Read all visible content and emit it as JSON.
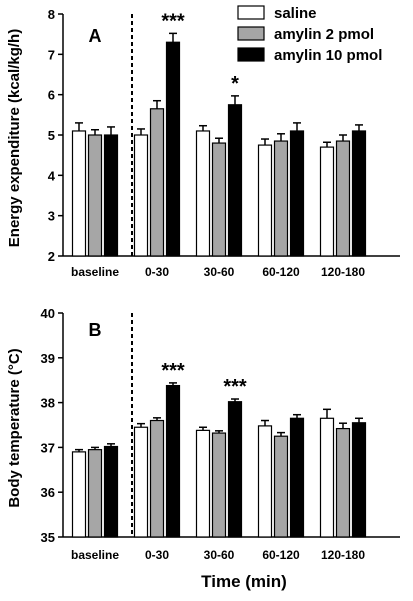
{
  "legend": {
    "position": "top-right",
    "items": [
      {
        "label": "saline",
        "fill": "#ffffff"
      },
      {
        "label": "amylin 2 pmol",
        "fill": "#a6a6a6"
      },
      {
        "label": "amylin 10 pmol",
        "fill": "#000000"
      }
    ]
  },
  "xlabel": "Time (min)",
  "chart_data": [
    {
      "type": "bar",
      "panel_label": "A",
      "ylabel": "Energy expenditure (kcal/kg/h)",
      "categories": [
        "baseline",
        "0-30",
        "30-60",
        "60-120",
        "120-180"
      ],
      "ylim": [
        2,
        8
      ],
      "yticks": [
        "2",
        "3",
        "4",
        "5",
        "6",
        "7",
        "8"
      ],
      "grid": false,
      "divider_after_category": "baseline",
      "series": [
        {
          "name": "saline",
          "color": "#ffffff",
          "values": [
            5.1,
            5.0,
            5.1,
            4.75,
            4.7
          ],
          "errors": [
            0.2,
            0.15,
            0.13,
            0.15,
            0.12
          ]
        },
        {
          "name": "amylin 2 pmol",
          "color": "#a6a6a6",
          "values": [
            5.0,
            5.65,
            4.8,
            4.85,
            4.85
          ],
          "errors": [
            0.13,
            0.2,
            0.12,
            0.18,
            0.15
          ]
        },
        {
          "name": "amylin 10 pmol",
          "color": "#000000",
          "values": [
            5.0,
            7.3,
            5.75,
            5.1,
            5.1
          ],
          "errors": [
            0.2,
            0.22,
            0.22,
            0.2,
            0.15
          ]
        }
      ],
      "annotations": [
        {
          "category": "0-30",
          "series": "amylin 10 pmol",
          "text": "***"
        },
        {
          "category": "30-60",
          "series": "amylin 10 pmol",
          "text": "*"
        }
      ]
    },
    {
      "type": "bar",
      "panel_label": "B",
      "ylabel": "Body temperature (°C)",
      "categories": [
        "baseline",
        "0-30",
        "30-60",
        "60-120",
        "120-180"
      ],
      "ylim": [
        35,
        40
      ],
      "yticks": [
        "35",
        "36",
        "37",
        "38",
        "39",
        "40"
      ],
      "grid": false,
      "divider_after_category": "baseline",
      "series": [
        {
          "name": "saline",
          "color": "#ffffff",
          "values": [
            36.9,
            37.45,
            37.38,
            37.48,
            37.65
          ],
          "errors": [
            0.05,
            0.08,
            0.07,
            0.12,
            0.2
          ]
        },
        {
          "name": "amylin 2 pmol",
          "color": "#a6a6a6",
          "values": [
            36.95,
            37.6,
            37.32,
            37.25,
            37.42
          ],
          "errors": [
            0.05,
            0.06,
            0.05,
            0.08,
            0.12
          ]
        },
        {
          "name": "amylin 10 pmol",
          "color": "#000000",
          "values": [
            37.02,
            38.38,
            38.02,
            37.65,
            37.55
          ],
          "errors": [
            0.06,
            0.06,
            0.06,
            0.08,
            0.1
          ]
        }
      ],
      "annotations": [
        {
          "category": "0-30",
          "series": "amylin 10 pmol",
          "text": "***"
        },
        {
          "category": "30-60",
          "series": "amylin 10 pmol",
          "text": "***"
        }
      ]
    }
  ]
}
